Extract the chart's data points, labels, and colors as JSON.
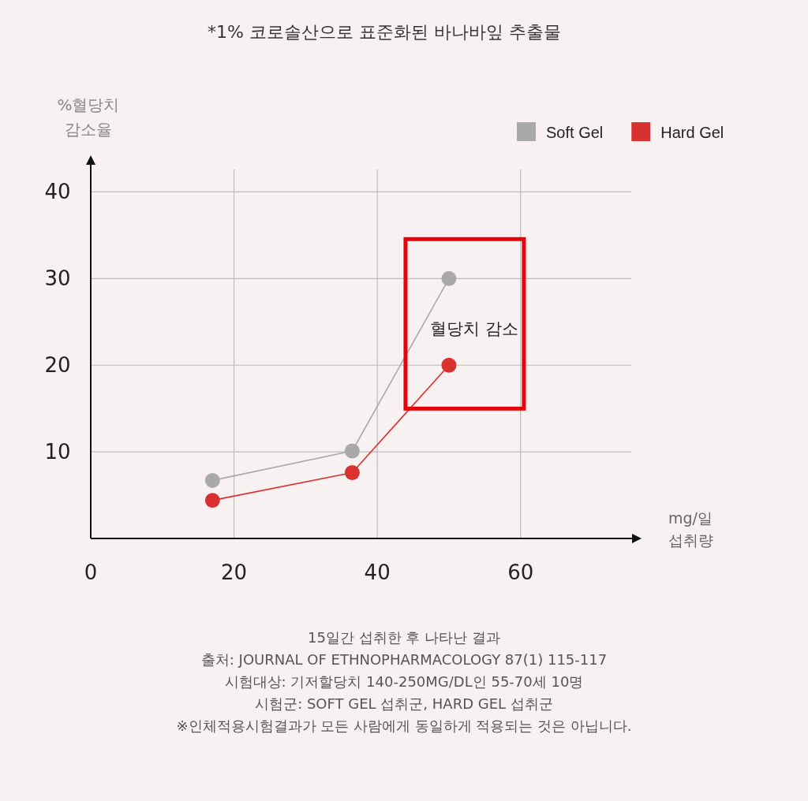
{
  "chart_data": {
    "type": "line",
    "title": "*1% 코로솔산으로 표준화된 바나바잎 추출물",
    "xlabel": "mg/일 섭취량",
    "ylabel": "%혈당치 감소율",
    "xlim": [
      0,
      76
    ],
    "ylim": [
      0,
      43.5
    ],
    "xticks": [
      0,
      20,
      40,
      60
    ],
    "yticks": [
      10,
      20,
      30,
      40
    ],
    "grid": true,
    "legend": "top right",
    "marker": "circle",
    "series": [
      {
        "name": "Soft Gel",
        "color": "#a9a9a9",
        "x": [
          17,
          36.5,
          50
        ],
        "values": [
          6.7,
          10.1,
          30
        ]
      },
      {
        "name": "Hard Gel",
        "color": "#d93030",
        "x": [
          17,
          36.5,
          50
        ],
        "values": [
          4.4,
          7.6,
          20
        ]
      }
    ],
    "annotations": [
      "혈당치 감소",
      "15일간 섭취한 후 나타난 결과",
      "출처: JOURNAL OF ETHNOPHARMACOLOGY 87(1) 115-117",
      "시험대상: 기저할당치 140-250MG/DL인 55-70세 10명",
      "시험군: SOFT GEL 섭취군, HARD GEL 섭취군",
      "※인체적용시험결과가 모든 사람에게 동일하게 적용되는 것은 아닙니다."
    ]
  }
}
